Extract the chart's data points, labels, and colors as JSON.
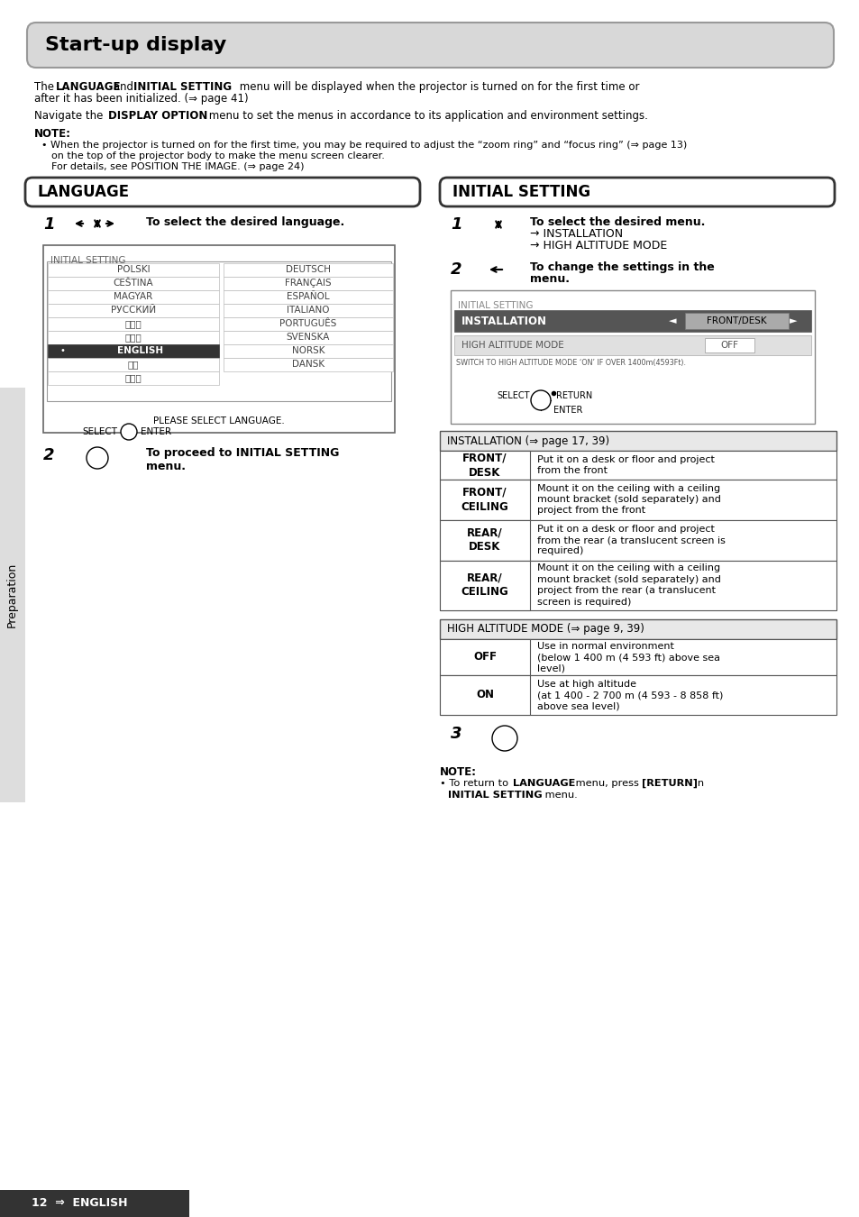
{
  "bg_color": "#ffffff",
  "title_box": "Start-up display",
  "lang_box_title": "LANGUAGE",
  "init_box_title": "INITIAL SETTING",
  "lang_step1_bold": "To select the desired language.",
  "lang_step2_bold": "To proceed to INITIAL SETTING\nmenu.",
  "init_step1_line1": "To select the desired menu.",
  "init_step1_line2": "→ INSTALLATION",
  "init_step1_line3": "→ HIGH ALTITUDE MODE",
  "init_step2_line1": "To change the settings in the",
  "init_step2_line2": "menu.",
  "lang_screen_title": "INITIAL SETTING",
  "lang_list_left": [
    "POLSKI",
    "CEŠTINA",
    "MAGYAR",
    "РУССКИЙ",
    "ไทย",
    "한국어",
    "ENGLISH",
    "中文",
    "日本語"
  ],
  "lang_list_right": [
    "DEUTSCH",
    "FRANÇAIS",
    "ESPAÑOL",
    "ITALIANO",
    "PORTUGUÊS",
    "SVENSKA",
    "NORSK",
    "DANSK"
  ],
  "lang_selected": "ENGLISH",
  "lang_please": "PLEASE SELECT LANGUAGE.",
  "init_screen_title": "INITIAL SETTING",
  "init_screen_row1_label": "INSTALLATION",
  "init_screen_row1_value": "FRONT/DESK",
  "init_screen_row2_label": "HIGH ALTITUDE MODE",
  "init_screen_row2_value": "OFF",
  "init_screen_note": "SWITCH TO HIGH ALTITUDE MODE ‘ON’ IF OVER 1400m(4593Ft).",
  "install_table_header": "INSTALLATION (⇒ page 17, 39)",
  "install_rows": [
    [
      "FRONT/\nDESK",
      "Put it on a desk or floor and project\nfrom the front"
    ],
    [
      "FRONT/\nCEILING",
      "Mount it on the ceiling with a ceiling\nmount bracket (sold separately) and\nproject from the front"
    ],
    [
      "REAR/\nDESK",
      "Put it on a desk or floor and project\nfrom the rear (a translucent screen is\nrequired)"
    ],
    [
      "REAR/\nCEILING",
      "Mount it on the ceiling with a ceiling\nmount bracket (sold separately) and\nproject from the rear (a translucent\nscreen is required)"
    ]
  ],
  "altitude_table_header": "HIGH ALTITUDE MODE (⇒ page 9, 39)",
  "altitude_rows": [
    [
      "OFF",
      "Use in normal environment\n(below 1 400 m (4 593 ft) above sea\nlevel)"
    ],
    [
      "ON",
      "Use at high altitude\n(at 1 400 - 2 700 m (4 593 - 8 858 ft)\nabove sea level)"
    ]
  ],
  "footer": "12  ⇒  ENGLISH",
  "sidebar": "Preparation"
}
